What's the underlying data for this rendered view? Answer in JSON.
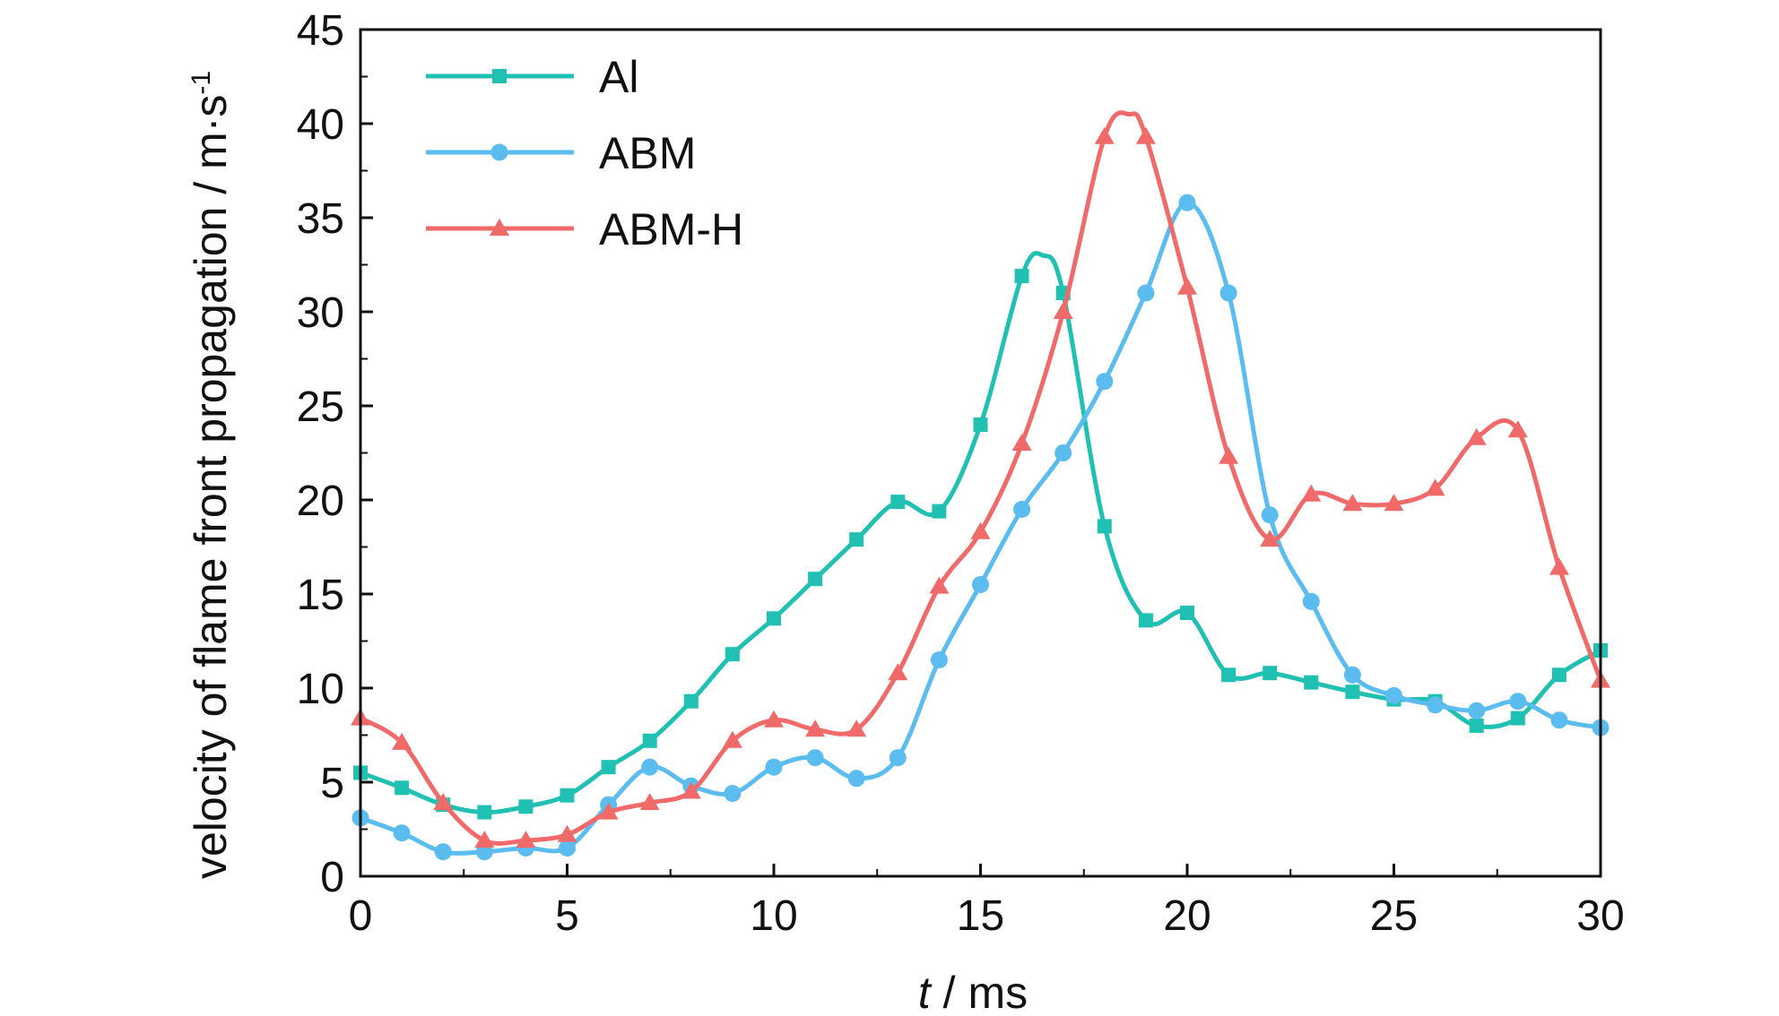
{
  "chart_data": {
    "type": "line",
    "title": "",
    "xlabel_italic": "t",
    "xlabel": " / ms",
    "ylabel": "velocity of flame front propagation / m·s",
    "ylabel_sup": "-1",
    "xlim": [
      0,
      30
    ],
    "ylim": [
      0,
      45
    ],
    "xticks": [
      "0",
      "5",
      "10",
      "15",
      "20",
      "25",
      "30"
    ],
    "yticks": [
      "0",
      "5",
      "10",
      "15",
      "20",
      "25",
      "30",
      "35",
      "40",
      "45"
    ],
    "grid": false,
    "legend_position": "top-left",
    "series": [
      {
        "name": "Al",
        "color": "#20c0b2",
        "marker": "square",
        "x": [
          0,
          1,
          2,
          3,
          4,
          5,
          6,
          7,
          8,
          9,
          10,
          11,
          12,
          13,
          14,
          15,
          16,
          17,
          18,
          19,
          20,
          21,
          22,
          23,
          24,
          25,
          26,
          27,
          28,
          29,
          30
        ],
        "y": [
          5.5,
          4.7,
          3.8,
          3.4,
          3.7,
          4.3,
          5.8,
          7.2,
          9.3,
          11.8,
          13.7,
          15.8,
          17.9,
          19.9,
          19.4,
          24.0,
          31.9,
          31.0,
          18.6,
          13.6,
          14.0,
          10.7,
          10.8,
          10.3,
          9.8,
          9.4,
          9.3,
          8.0,
          8.4,
          10.7,
          12.0
        ],
        "smooth_points": [
          [
            0,
            5.5
          ],
          [
            1,
            4.7
          ],
          [
            2,
            3.8
          ],
          [
            3,
            3.4
          ],
          [
            4,
            3.7
          ],
          [
            5,
            4.3
          ],
          [
            6,
            5.8
          ],
          [
            7,
            7.2
          ],
          [
            8,
            9.3
          ],
          [
            9,
            11.8
          ],
          [
            10,
            13.7
          ],
          [
            11,
            15.8
          ],
          [
            12,
            17.9
          ],
          [
            13,
            19.9
          ],
          [
            14,
            19.4
          ],
          [
            15,
            24.0
          ],
          [
            16,
            31.9
          ],
          [
            16.5,
            33.0
          ],
          [
            17,
            31.0
          ],
          [
            18,
            18.6
          ],
          [
            19,
            13.6
          ],
          [
            20,
            14.0
          ],
          [
            21,
            10.7
          ],
          [
            22,
            10.8
          ],
          [
            23,
            10.3
          ],
          [
            24,
            9.8
          ],
          [
            25,
            9.4
          ],
          [
            26,
            9.3
          ],
          [
            27,
            8.0
          ],
          [
            28,
            8.4
          ],
          [
            29,
            10.7
          ],
          [
            30,
            12.0
          ]
        ]
      },
      {
        "name": "ABM",
        "color": "#5bbcf0",
        "marker": "circle",
        "x": [
          0,
          1,
          2,
          3,
          4,
          5,
          6,
          7,
          8,
          9,
          10,
          11,
          12,
          13,
          14,
          15,
          16,
          17,
          18,
          19,
          20,
          21,
          22,
          23,
          24,
          25,
          26,
          27,
          28,
          29,
          30
        ],
        "y": [
          3.1,
          2.3,
          1.3,
          1.3,
          1.5,
          1.5,
          3.8,
          5.8,
          4.8,
          4.4,
          5.8,
          6.3,
          5.2,
          6.3,
          11.5,
          15.5,
          19.5,
          22.5,
          26.3,
          31.0,
          35.8,
          31.0,
          19.2,
          14.6,
          10.7,
          9.6,
          9.1,
          8.8,
          9.3,
          8.3,
          7.9
        ]
      },
      {
        "name": "ABM-H",
        "color": "#f06a6a",
        "marker": "triangle",
        "x": [
          0,
          1,
          2,
          3,
          4,
          5,
          6,
          7,
          8,
          9,
          10,
          11,
          12,
          13,
          14,
          15,
          16,
          17,
          18,
          19,
          20,
          21,
          22,
          23,
          24,
          25,
          26,
          27,
          28,
          29,
          30
        ],
        "y": [
          8.4,
          7.1,
          3.9,
          1.9,
          1.9,
          2.2,
          3.4,
          3.9,
          4.5,
          7.2,
          8.3,
          7.8,
          7.8,
          10.8,
          15.4,
          18.3,
          23.0,
          30.0,
          39.3,
          39.3,
          31.3,
          22.3,
          17.9,
          20.3,
          19.8,
          19.8,
          20.6,
          23.3,
          23.7,
          16.4,
          10.4
        ],
        "smooth_points": [
          [
            0,
            8.4
          ],
          [
            1,
            7.1
          ],
          [
            2,
            3.9
          ],
          [
            3,
            1.9
          ],
          [
            4,
            1.9
          ],
          [
            5,
            2.2
          ],
          [
            6,
            3.4
          ],
          [
            7,
            3.9
          ],
          [
            8,
            4.5
          ],
          [
            9,
            7.2
          ],
          [
            10,
            8.3
          ],
          [
            11,
            7.8
          ],
          [
            12,
            7.8
          ],
          [
            13,
            10.8
          ],
          [
            14,
            15.4
          ],
          [
            15,
            18.3
          ],
          [
            16,
            23.0
          ],
          [
            17,
            30.0
          ],
          [
            18,
            39.3
          ],
          [
            18.6,
            40.5
          ],
          [
            19,
            39.3
          ],
          [
            20,
            31.3
          ],
          [
            21,
            22.3
          ],
          [
            22,
            17.9
          ],
          [
            23,
            20.3
          ],
          [
            24,
            19.8
          ],
          [
            25,
            19.8
          ],
          [
            26,
            20.6
          ],
          [
            27,
            23.3
          ],
          [
            28,
            23.7
          ],
          [
            29,
            16.4
          ],
          [
            30,
            10.4
          ]
        ]
      }
    ]
  }
}
